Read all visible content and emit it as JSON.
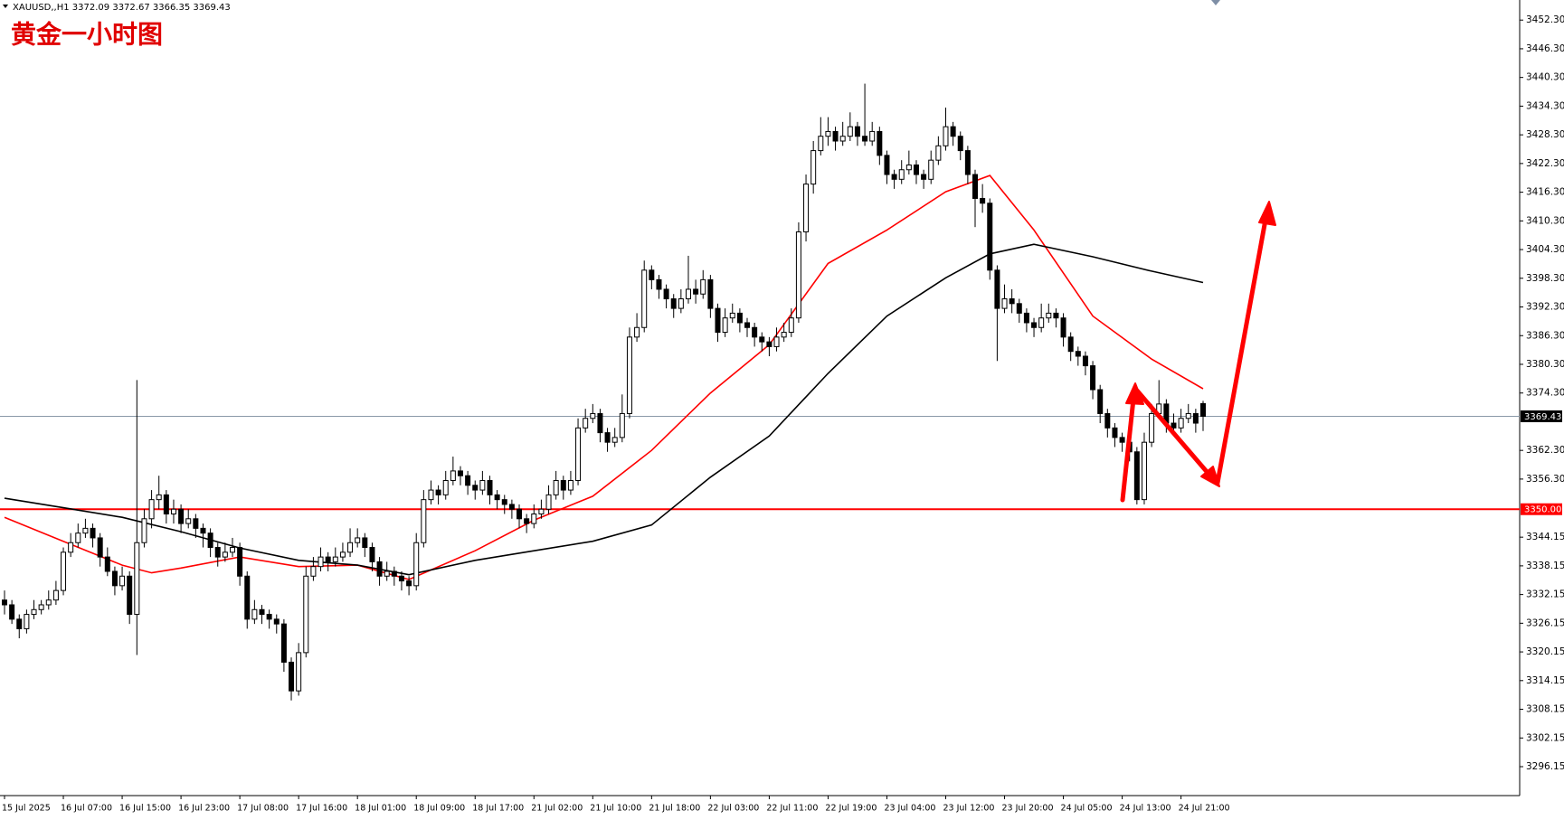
{
  "chart_data": {
    "type": "candlestick",
    "title": "黄金一小时图",
    "header": "XAUUSD,,H1  3372.09 3372.67 3366.35 3369.43",
    "ylim": [
      3290.1,
      3456.5
    ],
    "yticks": [
      {
        "value": 3452.3,
        "label": "3452.30"
      },
      {
        "value": 3446.3,
        "label": "3446.30"
      },
      {
        "value": 3440.3,
        "label": "3440.30"
      },
      {
        "value": 3434.3,
        "label": "3434.30"
      },
      {
        "value": 3428.3,
        "label": "3428.30"
      },
      {
        "value": 3422.3,
        "label": "3422.30"
      },
      {
        "value": 3416.3,
        "label": "3416.30"
      },
      {
        "value": 3410.3,
        "label": "3410.30"
      },
      {
        "value": 3404.3,
        "label": "3404.30"
      },
      {
        "value": 3398.3,
        "label": "3398.30"
      },
      {
        "value": 3392.3,
        "label": "3392.30"
      },
      {
        "value": 3386.3,
        "label": "3386.30"
      },
      {
        "value": 3380.3,
        "label": "3380.30"
      },
      {
        "value": 3374.3,
        "label": "3374.30"
      },
      {
        "value": 3362.3,
        "label": "3362.30"
      },
      {
        "value": 3356.3,
        "label": "3356.30"
      },
      {
        "value": 3344.15,
        "label": "3344.15"
      },
      {
        "value": 3338.15,
        "label": "3338.15"
      },
      {
        "value": 3332.15,
        "label": "3332.15"
      },
      {
        "value": 3326.15,
        "label": "3326.15"
      },
      {
        "value": 3320.15,
        "label": "3320.15"
      },
      {
        "value": 3314.15,
        "label": "3314.15"
      },
      {
        "value": 3308.15,
        "label": "3308.15"
      },
      {
        "value": 3302.15,
        "label": "3302.15"
      },
      {
        "value": 3296.15,
        "label": "3296.15"
      }
    ],
    "categories": [
      "15 Jul 2025",
      null,
      null,
      null,
      null,
      null,
      null,
      null,
      "16 Jul 07:00",
      null,
      null,
      null,
      null,
      null,
      null,
      null,
      "16 Jul 15:00",
      null,
      null,
      null,
      null,
      null,
      null,
      null,
      "16 Jul 23:00",
      null,
      null,
      null,
      null,
      null,
      null,
      null,
      "17 Jul 08:00",
      null,
      null,
      null,
      null,
      null,
      null,
      null,
      "17 Jul 16:00",
      null,
      null,
      null,
      null,
      null,
      null,
      null,
      "18 Jul 01:00",
      null,
      null,
      null,
      null,
      null,
      null,
      null,
      "18 Jul 09:00",
      null,
      null,
      null,
      null,
      null,
      null,
      null,
      "18 Jul 17:00",
      null,
      null,
      null,
      null,
      null,
      null,
      null,
      "21 Jul 02:00",
      null,
      null,
      null,
      null,
      null,
      null,
      null,
      "21 Jul 10:00",
      null,
      null,
      null,
      null,
      null,
      null,
      null,
      "21 Jul 18:00",
      null,
      null,
      null,
      null,
      null,
      null,
      null,
      "22 Jul 03:00",
      null,
      null,
      null,
      null,
      null,
      null,
      null,
      "22 Jul 11:00",
      null,
      null,
      null,
      null,
      null,
      null,
      null,
      "22 Jul 19:00",
      null,
      null,
      null,
      null,
      null,
      null,
      null,
      "23 Jul 04:00",
      null,
      null,
      null,
      null,
      null,
      null,
      null,
      "23 Jul 12:00",
      null,
      null,
      null,
      null,
      null,
      null,
      null,
      "23 Jul 20:00",
      null,
      null,
      null,
      null,
      null,
      null,
      null,
      "24 Jul 05:00",
      null,
      null,
      null,
      null,
      null,
      null,
      null,
      "24 Jul 13:00",
      null,
      null,
      null,
      null,
      null,
      null,
      null,
      "24 Jul 21:00",
      null,
      null,
      null
    ],
    "candles": [
      [
        3331,
        3333,
        3328,
        3330
      ],
      [
        3330,
        3331,
        3326,
        3327
      ],
      [
        3327,
        3328,
        3323,
        3325
      ],
      [
        3325,
        3329,
        3324,
        3328
      ],
      [
        3328,
        3331,
        3327,
        3329
      ],
      [
        3329,
        3331,
        3328,
        3330
      ],
      [
        3330,
        3333,
        3329,
        3331
      ],
      [
        3331,
        3335,
        3330,
        3333
      ],
      [
        3333,
        3342,
        3332,
        3341
      ],
      [
        3341,
        3345,
        3340,
        3343
      ],
      [
        3343,
        3347,
        3342,
        3345
      ],
      [
        3345,
        3348,
        3344,
        3346
      ],
      [
        3346,
        3347,
        3342,
        3344
      ],
      [
        3344,
        3345,
        3338,
        3340
      ],
      [
        3340,
        3342,
        3336,
        3337
      ],
      [
        3337,
        3338,
        3332,
        3334
      ],
      [
        3334,
        3338,
        3333,
        3336
      ],
      [
        3336,
        3337,
        3326,
        3328
      ],
      [
        3328,
        3377,
        3319.5,
        3343
      ],
      [
        3343,
        3350,
        3342,
        3348
      ],
      [
        3348,
        3354,
        3346,
        3352
      ],
      [
        3352,
        3357,
        3350,
        3353
      ],
      [
        3353,
        3354,
        3347,
        3349
      ],
      [
        3349,
        3352,
        3347,
        3350
      ],
      [
        3350,
        3351,
        3345,
        3347
      ],
      [
        3347,
        3350,
        3346,
        3348
      ],
      [
        3348,
        3349,
        3344,
        3346
      ],
      [
        3346,
        3347,
        3342,
        3345
      ],
      [
        3345,
        3346,
        3340,
        3342
      ],
      [
        3342,
        3343,
        3338,
        3340
      ],
      [
        3340,
        3343,
        3339,
        3341
      ],
      [
        3341,
        3344,
        3340,
        3342
      ],
      [
        3342,
        3343,
        3334,
        3336
      ],
      [
        3336,
        3337,
        3325,
        3327
      ],
      [
        3327,
        3331,
        3326,
        3329
      ],
      [
        3329,
        3330,
        3326,
        3328
      ],
      [
        3328,
        3329,
        3325,
        3327
      ],
      [
        3327,
        3328,
        3324,
        3326
      ],
      [
        3326,
        3327,
        3316,
        3318
      ],
      [
        3318,
        3319,
        3310,
        3312
      ],
      [
        3312,
        3322,
        3311,
        3320
      ],
      [
        3320,
        3338,
        3319,
        3336
      ],
      [
        3336,
        3340,
        3335,
        3338
      ],
      [
        3338,
        3342,
        3337,
        3340
      ],
      [
        3340,
        3341,
        3337,
        3339
      ],
      [
        3339,
        3342,
        3338,
        3340
      ],
      [
        3340,
        3343,
        3339,
        3341
      ],
      [
        3341,
        3346,
        3340,
        3343
      ],
      [
        3343,
        3346,
        3342,
        3344
      ],
      [
        3344,
        3345,
        3340,
        3342
      ],
      [
        3342,
        3343,
        3337,
        3339
      ],
      [
        3339,
        3340,
        3334,
        3336
      ],
      [
        3336,
        3339,
        3335,
        3337
      ],
      [
        3337,
        3338,
        3334,
        3336
      ],
      [
        3336,
        3337,
        3333,
        3335
      ],
      [
        3335,
        3336,
        3332,
        3334
      ],
      [
        3334,
        3345,
        3333,
        3343
      ],
      [
        3343,
        3354,
        3342,
        3352
      ],
      [
        3352,
        3356,
        3351,
        3354
      ],
      [
        3354,
        3355,
        3351,
        3353
      ],
      [
        3353,
        3358,
        3352,
        3356
      ],
      [
        3356,
        3361,
        3355,
        3358
      ],
      [
        3358,
        3359,
        3355,
        3357
      ],
      [
        3357,
        3358,
        3353,
        3355
      ],
      [
        3355,
        3356,
        3352,
        3354
      ],
      [
        3354,
        3358,
        3353,
        3356
      ],
      [
        3356,
        3357,
        3351,
        3353
      ],
      [
        3353,
        3354,
        3350,
        3352
      ],
      [
        3352,
        3353,
        3349,
        3351
      ],
      [
        3351,
        3352,
        3348,
        3350
      ],
      [
        3350,
        3351,
        3346,
        3348
      ],
      [
        3348,
        3349,
        3345,
        3347
      ],
      [
        3347,
        3351,
        3346,
        3349
      ],
      [
        3349,
        3352,
        3348,
        3350
      ],
      [
        3350,
        3355,
        3349,
        3353
      ],
      [
        3353,
        3358,
        3352,
        3356
      ],
      [
        3356,
        3357,
        3352,
        3354
      ],
      [
        3354,
        3358,
        3353,
        3356
      ],
      [
        3356,
        3369,
        3355,
        3367
      ],
      [
        3367,
        3371,
        3366,
        3369
      ],
      [
        3369,
        3372,
        3368,
        3370
      ],
      [
        3370,
        3371,
        3364,
        3366
      ],
      [
        3366,
        3367,
        3362,
        3364
      ],
      [
        3364,
        3367,
        3363,
        3365
      ],
      [
        3365,
        3374,
        3364,
        3370
      ],
      [
        3370,
        3388,
        3369,
        3386
      ],
      [
        3386,
        3391,
        3385,
        3388
      ],
      [
        3388,
        3402,
        3387,
        3400
      ],
      [
        3400,
        3401,
        3396,
        3398
      ],
      [
        3398,
        3399,
        3394,
        3396
      ],
      [
        3396,
        3397,
        3392,
        3394
      ],
      [
        3394,
        3395,
        3390,
        3392
      ],
      [
        3392,
        3396,
        3391,
        3394
      ],
      [
        3394,
        3403,
        3393,
        3396
      ],
      [
        3396,
        3398,
        3393,
        3395
      ],
      [
        3395,
        3400,
        3394,
        3398
      ],
      [
        3398,
        3399,
        3390,
        3392
      ],
      [
        3392,
        3393,
        3385,
        3387
      ],
      [
        3387,
        3392,
        3386,
        3390
      ],
      [
        3390,
        3393,
        3389,
        3391
      ],
      [
        3391,
        3392,
        3387,
        3389
      ],
      [
        3389,
        3390,
        3386,
        3388
      ],
      [
        3388,
        3389,
        3384,
        3386
      ],
      [
        3386,
        3387,
        3383,
        3385
      ],
      [
        3385,
        3386,
        3382,
        3384
      ],
      [
        3384,
        3388,
        3383,
        3386
      ],
      [
        3386,
        3389,
        3385,
        3387
      ],
      [
        3387,
        3392,
        3386,
        3390
      ],
      [
        3390,
        3410,
        3389,
        3408
      ],
      [
        3408,
        3420,
        3406,
        3418
      ],
      [
        3418,
        3427,
        3416,
        3425
      ],
      [
        3425,
        3432,
        3424,
        3428
      ],
      [
        3428,
        3432,
        3426,
        3429
      ],
      [
        3429,
        3430,
        3425,
        3427
      ],
      [
        3427,
        3431,
        3426,
        3428
      ],
      [
        3428,
        3433,
        3427,
        3430
      ],
      [
        3430,
        3431,
        3426,
        3428
      ],
      [
        3428,
        3439,
        3426,
        3427
      ],
      [
        3427,
        3431,
        3426,
        3429
      ],
      [
        3429,
        3430,
        3422,
        3424
      ],
      [
        3424,
        3425,
        3418,
        3420
      ],
      [
        3420,
        3421,
        3417,
        3419
      ],
      [
        3419,
        3423,
        3418,
        3421
      ],
      [
        3421,
        3425,
        3420,
        3422
      ],
      [
        3422,
        3423,
        3418,
        3420
      ],
      [
        3420,
        3421,
        3417,
        3419
      ],
      [
        3419,
        3425,
        3418,
        3423
      ],
      [
        3423,
        3428,
        3422,
        3426
      ],
      [
        3426,
        3434,
        3425,
        3430
      ],
      [
        3430,
        3431,
        3426,
        3428
      ],
      [
        3428,
        3429,
        3423,
        3425
      ],
      [
        3425,
        3426,
        3418,
        3420
      ],
      [
        3420,
        3421,
        3409,
        3415
      ],
      [
        3415,
        3418,
        3412,
        3414
      ],
      [
        3414,
        3415,
        3398,
        3400
      ],
      [
        3400,
        3401,
        3381,
        3392
      ],
      [
        3392,
        3397,
        3391,
        3394
      ],
      [
        3394,
        3396,
        3391,
        3393
      ],
      [
        3393,
        3394,
        3389,
        3391
      ],
      [
        3391,
        3392,
        3387,
        3389
      ],
      [
        3389,
        3390,
        3386,
        3388
      ],
      [
        3388,
        3393,
        3387,
        3390
      ],
      [
        3390,
        3393,
        3389,
        3391
      ],
      [
        3391,
        3392,
        3388,
        3390
      ],
      [
        3390,
        3391,
        3384,
        3386
      ],
      [
        3386,
        3387,
        3381,
        3383
      ],
      [
        3383,
        3384,
        3380,
        3382
      ],
      [
        3382,
        3383,
        3378,
        3380
      ],
      [
        3380,
        3381,
        3373,
        3375
      ],
      [
        3375,
        3376,
        3368,
        3370
      ],
      [
        3370,
        3371,
        3365,
        3367
      ],
      [
        3367,
        3368,
        3363,
        3365
      ],
      [
        3365,
        3366,
        3362,
        3364
      ],
      [
        3364,
        3365,
        3360,
        3362
      ],
      [
        3362,
        3363,
        3351,
        3352
      ],
      [
        3352,
        3366,
        3351,
        3364
      ],
      [
        3364,
        3372,
        3363,
        3370
      ],
      [
        3370,
        3377,
        3369,
        3372
      ],
      [
        3372,
        3373,
        3366,
        3368
      ],
      [
        3368,
        3370,
        3366,
        3367
      ],
      [
        3367,
        3371,
        3366,
        3369
      ],
      [
        3369,
        3372,
        3368,
        3370
      ],
      [
        3370,
        3371,
        3366,
        3368
      ],
      [
        3372.09,
        3372.67,
        3366.35,
        3369.43
      ]
    ],
    "lines": [
      {
        "color": "#ff0000",
        "x": [
          0,
          8,
          16,
          20,
          24,
          32,
          40,
          48,
          55,
          64,
          72,
          80,
          88,
          96,
          104,
          112,
          120,
          128,
          134,
          140,
          148,
          156,
          163
        ],
        "values": [
          3348.3,
          3343.3,
          3338.3,
          3336.7,
          3337.7,
          3340,
          3338,
          3338.3,
          3335.3,
          3341.3,
          3347.7,
          3352.7,
          3362.3,
          3374.3,
          3384.4,
          3401.4,
          3408.4,
          3416.4,
          3419.8,
          3408.4,
          3390.4,
          3381.4,
          3375.2
        ]
      },
      {
        "color": "#000000",
        "x": [
          0,
          8,
          16,
          24,
          32,
          40,
          48,
          55,
          64,
          72,
          80,
          88,
          96,
          104,
          112,
          120,
          128,
          134,
          140,
          148,
          156,
          163
        ],
        "values": [
          3352.3,
          3350.3,
          3348.3,
          3345.3,
          3341.9,
          3339.3,
          3338.3,
          3336.3,
          3339.3,
          3341.3,
          3343.3,
          3346.7,
          3356.7,
          3365.3,
          3378.4,
          3390.4,
          3398.4,
          3403.4,
          3405.4,
          3402.8,
          3399.8,
          3397.4
        ]
      }
    ],
    "levels": [
      {
        "value": 3369.43,
        "label": "3369.43",
        "color": "#8a99a8",
        "label_color": "#000000"
      },
      {
        "value": 3350,
        "label": "3350.00",
        "color": "#ff0000",
        "label_color": "#ff0000"
      }
    ]
  }
}
